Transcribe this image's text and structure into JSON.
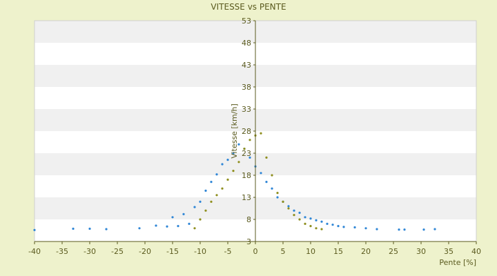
{
  "chart_data": {
    "type": "scatter",
    "title": "VITESSE vs PENTE",
    "xlabel": "Pente [%]",
    "ylabel": "Vitesse [km/h]",
    "xlim": [
      -40,
      40
    ],
    "ylim": [
      3,
      53
    ],
    "x_ticks": [
      "-40",
      "-35",
      "-30",
      "-25",
      "-20",
      "-15",
      "-10",
      "-5",
      "0",
      "5",
      "10",
      "15",
      "20",
      "25",
      "30",
      "35",
      "40"
    ],
    "y_ticks": [
      "3",
      "8",
      "13",
      "18",
      "23",
      "28",
      "33",
      "38",
      "43",
      "48",
      "53"
    ],
    "grid": "horizontal alternating bands",
    "legend": "none",
    "colors": {
      "background": "#eef2cc",
      "plot_band_light": "#ffffff",
      "plot_band_dark": "#f0f0f0",
      "series_blue": "#2f86d6",
      "series_olive": "#8f8f1f",
      "axis": "#5a5a1e"
    },
    "series": [
      {
        "color": "#2f86d6",
        "points": [
          [
            -40,
            5.6
          ],
          [
            -33,
            5.9
          ],
          [
            -30,
            5.9
          ],
          [
            -27,
            5.8
          ],
          [
            -21,
            6.0
          ],
          [
            -18,
            6.6
          ],
          [
            -16,
            6.4
          ],
          [
            -15,
            8.5
          ],
          [
            -14,
            6.5
          ],
          [
            -13,
            9.2
          ],
          [
            -12,
            7.0
          ],
          [
            -11,
            10.8
          ],
          [
            -10,
            12.0
          ],
          [
            -9,
            14.5
          ],
          [
            -8,
            16.5
          ],
          [
            -7,
            18.2
          ],
          [
            -6,
            20.5
          ],
          [
            -5,
            21.5
          ],
          [
            -4,
            23.0
          ],
          [
            -3,
            25.0
          ],
          [
            -2,
            24.0
          ],
          [
            -1,
            22.0
          ],
          [
            0,
            20.0
          ],
          [
            1,
            18.5
          ],
          [
            2,
            16.5
          ],
          [
            3,
            15.0
          ],
          [
            4,
            13.0
          ],
          [
            5,
            12.0
          ],
          [
            6,
            11.0
          ],
          [
            7,
            10.0
          ],
          [
            8,
            9.5
          ],
          [
            9,
            8.5
          ],
          [
            10,
            8.2
          ],
          [
            11,
            7.8
          ],
          [
            12,
            7.5
          ],
          [
            13,
            7.0
          ],
          [
            14,
            6.8
          ],
          [
            15,
            6.5
          ],
          [
            16,
            6.3
          ],
          [
            18,
            6.2
          ],
          [
            20,
            6.0
          ],
          [
            22,
            5.8
          ],
          [
            26,
            5.7
          ],
          [
            27,
            5.7
          ],
          [
            30.5,
            5.7
          ],
          [
            32.5,
            5.8
          ]
        ]
      },
      {
        "color": "#8f8f1f",
        "points": [
          [
            -11,
            6.0
          ],
          [
            -10,
            8.0
          ],
          [
            -9,
            10.0
          ],
          [
            -8,
            12.0
          ],
          [
            -7,
            13.5
          ],
          [
            -6,
            15.0
          ],
          [
            -5,
            17.0
          ],
          [
            -4,
            19.0
          ],
          [
            -3,
            21.0
          ],
          [
            -2,
            24.0
          ],
          [
            -1,
            26.0
          ],
          [
            0,
            27.0
          ],
          [
            1,
            27.5
          ],
          [
            2,
            22.0
          ],
          [
            3,
            18.0
          ],
          [
            4,
            14.0
          ],
          [
            5,
            12.0
          ],
          [
            6,
            10.5
          ],
          [
            7,
            9.0
          ],
          [
            8,
            8.0
          ],
          [
            9,
            7.0
          ],
          [
            10,
            6.5
          ],
          [
            11,
            6.0
          ],
          [
            12,
            5.8
          ]
        ]
      }
    ]
  }
}
